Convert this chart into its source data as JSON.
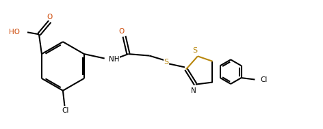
{
  "bg_color": "#ffffff",
  "bond_color": "#000000",
  "bond_width": 1.5,
  "S_color": "#b8860b",
  "N_color": "#000000",
  "Cl_color": "#000000",
  "O_color": "#cc4400",
  "figsize": [
    4.72,
    1.89
  ],
  "dpi": 100,
  "xlim": [
    0,
    9.5
  ],
  "ylim": [
    0,
    3.6
  ]
}
